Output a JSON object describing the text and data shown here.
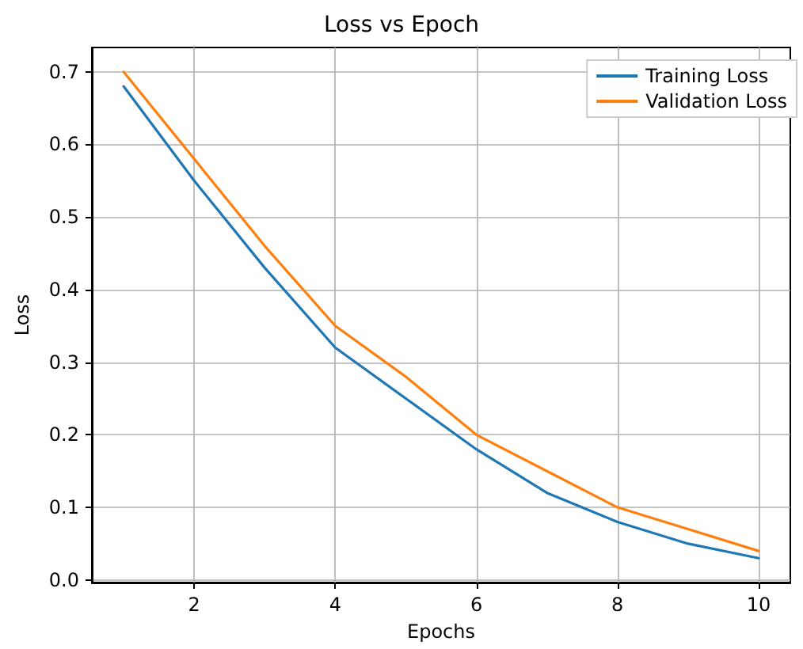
{
  "chart_data": {
    "type": "line",
    "title": "Loss vs Epoch",
    "xlabel": "Epochs",
    "ylabel": "Loss",
    "x": [
      1,
      2,
      3,
      4,
      5,
      6,
      7,
      8,
      9,
      10
    ],
    "series": [
      {
        "name": "Training Loss",
        "color": "#1f77b4",
        "values": [
          0.68,
          0.55,
          0.43,
          0.32,
          0.25,
          0.18,
          0.12,
          0.08,
          0.05,
          0.03
        ]
      },
      {
        "name": "Validation Loss",
        "color": "#ff7f0e",
        "values": [
          0.7,
          0.58,
          0.46,
          0.35,
          0.28,
          0.2,
          0.15,
          0.1,
          0.07,
          0.04
        ]
      }
    ],
    "xlim": [
      0.55,
      10.45
    ],
    "xticks": [
      2,
      4,
      6,
      8,
      10
    ],
    "ylim": [
      -0.0035,
      0.7335
    ],
    "yticks": [
      {
        "value": 0,
        "label": "0.0"
      },
      {
        "value": 0.1,
        "label": "0.1"
      },
      {
        "value": 0.2,
        "label": "0.2"
      },
      {
        "value": 0.3,
        "label": "0.3"
      },
      {
        "value": 0.4,
        "label": "0.4"
      },
      {
        "value": 0.5,
        "label": "0.5"
      },
      {
        "value": 0.6,
        "label": "0.6"
      },
      {
        "value": 0.7,
        "label": "0.7"
      }
    ],
    "grid": true,
    "legend": "top right",
    "marker": "none",
    "line_style": "solid"
  }
}
